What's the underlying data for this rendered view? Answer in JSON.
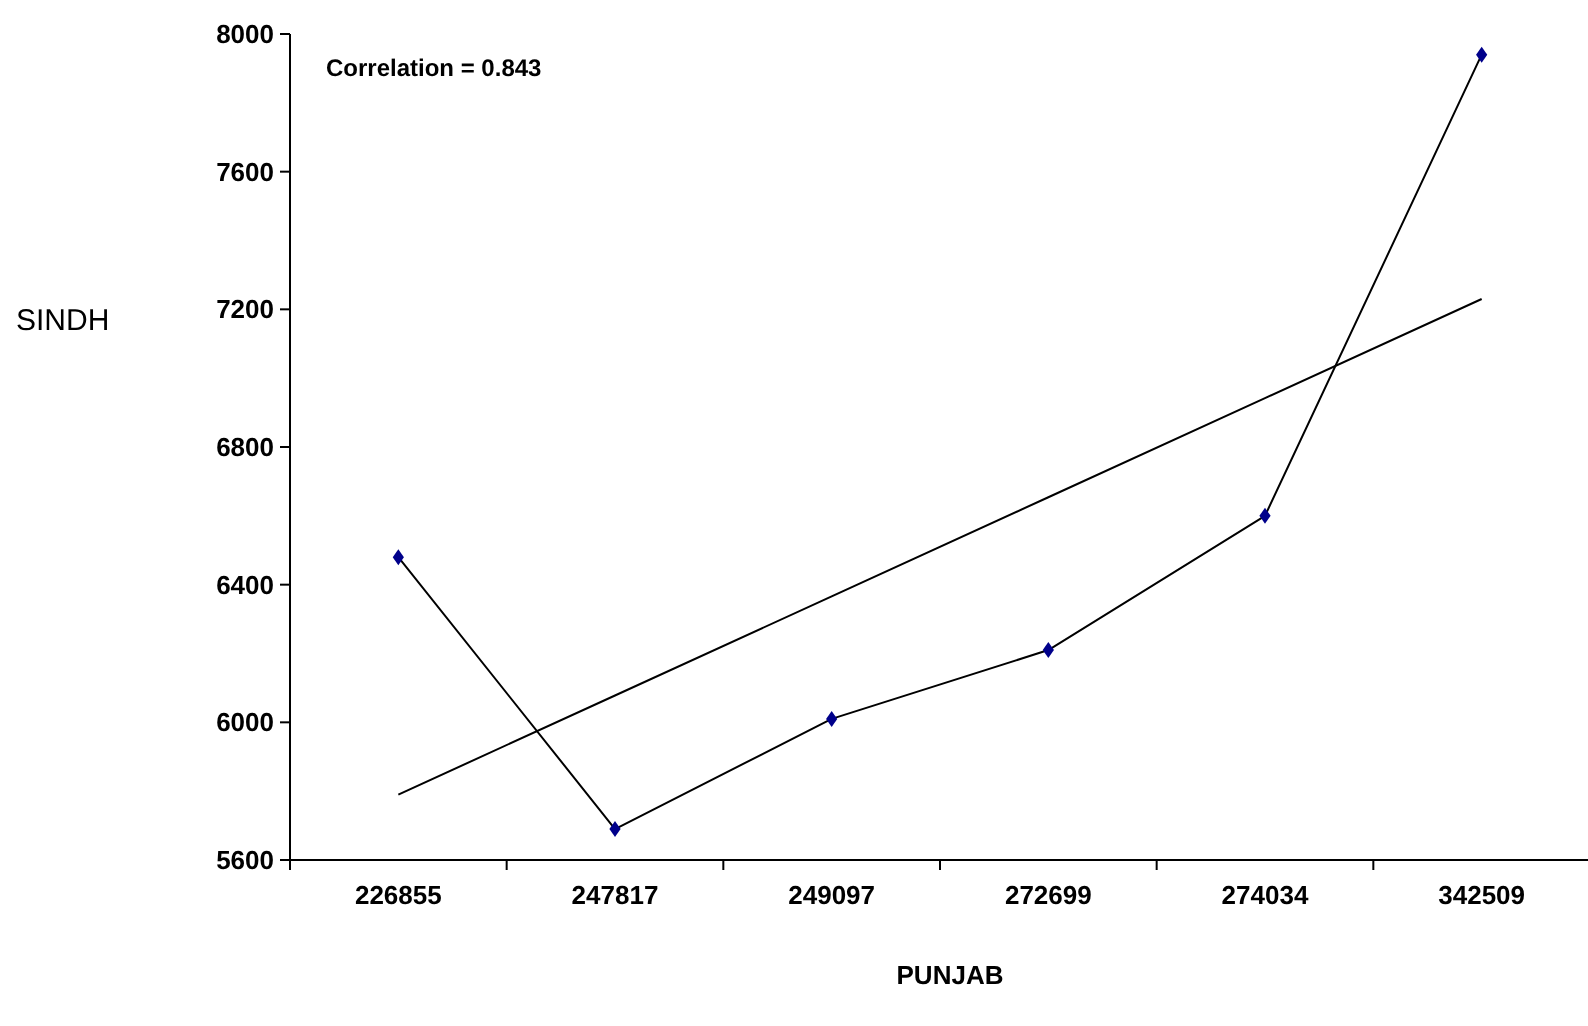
{
  "chart_data": {
    "type": "line",
    "xlabel": "PUNJAB",
    "ylabel": "SINDH",
    "categories": [
      "226855",
      "247817",
      "249097",
      "272699",
      "274034",
      "342509"
    ],
    "ylim": [
      5600,
      8000
    ],
    "yticks": [
      5600,
      6000,
      6400,
      6800,
      7200,
      7600,
      8000
    ],
    "grid": false,
    "marker": "diamond",
    "annotations": [
      "Correlation = 0.843"
    ],
    "series": [
      {
        "color": "#000000",
        "values": [
          6480,
          5690,
          6010,
          6210,
          6600,
          7940
        ]
      },
      {
        "type": "line",
        "marker": "none",
        "color": "#000000",
        "values": [
          5790,
          6078,
          6366,
          6654,
          6942,
          7230
        ]
      }
    ]
  }
}
